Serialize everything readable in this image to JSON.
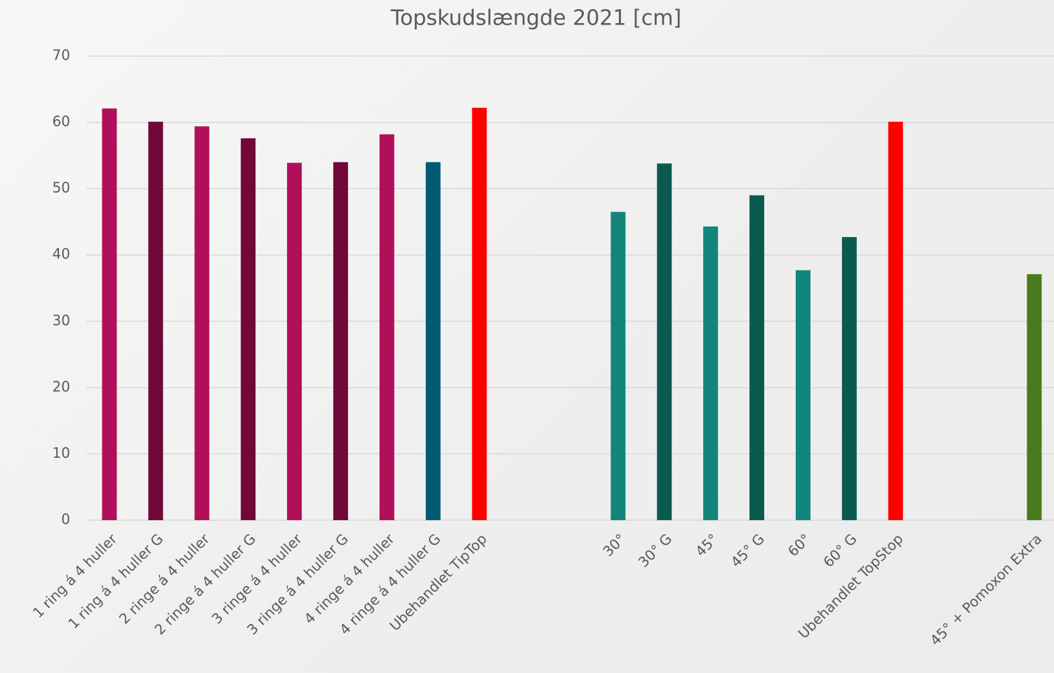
{
  "chart_data": {
    "type": "bar",
    "title": "Topskudslængde 2021 [cm]",
    "categories": [
      "1 ring á 4 huller",
      "1 ring á 4 huller G",
      "2 ringe á 4 huller",
      "2 ringe á 4 huller G",
      "3 ringe á 4 huller",
      "3 ringe á 4 huller G",
      "4 ringe á 4 huller",
      "4 ringe á 4 huller G",
      "Ubehandlet TipTop",
      null,
      null,
      "30°",
      "30° G",
      "45°",
      "45° G",
      "60°",
      "60° G",
      "Ubehandlet TopStop",
      null,
      null,
      "45° + Pomoxon Extra"
    ],
    "values": [
      62.1,
      60.1,
      59.4,
      57.6,
      53.9,
      54.0,
      58.2,
      54.0,
      62.2,
      null,
      null,
      46.5,
      53.8,
      44.3,
      49.0,
      37.7,
      42.7,
      60.1,
      null,
      null,
      37.1
    ],
    "colors": [
      "#b0105a",
      "#700839",
      "#b0105a",
      "#700839",
      "#b0105a",
      "#700839",
      "#b0105a",
      "#005a72",
      "#ff0000",
      null,
      null,
      "#13857a",
      "#0b5a50",
      "#13857a",
      "#0b5a50",
      "#13857a",
      "#0b5a50",
      "#ff0000",
      null,
      null,
      "#4a7a1e"
    ],
    "ylim": [
      0,
      70
    ],
    "yticks": [
      0,
      10,
      20,
      30,
      40,
      50,
      60,
      70
    ],
    "grid": true
  }
}
